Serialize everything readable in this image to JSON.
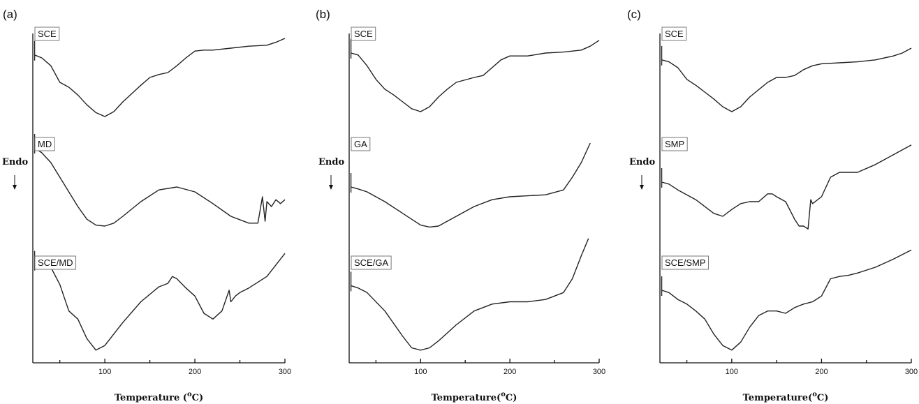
{
  "chart_data": [
    {
      "type": "line",
      "panel_label": "(a)",
      "xlabel": "Temperature (",
      "xlabel_sup": "o",
      "xlabel_end": "C)",
      "ylabel": "Endo",
      "xlim": [
        20,
        300
      ],
      "xticks": [
        100,
        200,
        300
      ],
      "series": [
        {
          "name": "SCE",
          "x": [
            22,
            30,
            40,
            50,
            60,
            70,
            80,
            90,
            100,
            110,
            120,
            140,
            150,
            160,
            170,
            180,
            190,
            200,
            210,
            220,
            240,
            260,
            280,
            290,
            300
          ],
          "y": [
            0.83,
            0.8,
            0.72,
            0.55,
            0.5,
            0.42,
            0.32,
            0.24,
            0.2,
            0.25,
            0.35,
            0.52,
            0.6,
            0.63,
            0.65,
            0.72,
            0.8,
            0.87,
            0.88,
            0.88,
            0.9,
            0.92,
            0.93,
            0.96,
            1.0
          ]
        },
        {
          "name": "MD",
          "x": [
            22,
            30,
            40,
            50,
            60,
            70,
            80,
            90,
            100,
            110,
            120,
            140,
            160,
            180,
            200,
            220,
            240,
            260,
            270,
            275,
            278,
            280,
            285,
            290,
            295,
            300
          ],
          "y": [
            0.95,
            0.9,
            0.8,
            0.65,
            0.5,
            0.35,
            0.22,
            0.16,
            0.15,
            0.18,
            0.25,
            0.4,
            0.52,
            0.55,
            0.5,
            0.38,
            0.25,
            0.18,
            0.18,
            0.45,
            0.2,
            0.4,
            0.35,
            0.42,
            0.38,
            0.42
          ]
        },
        {
          "name": "SCE/MD",
          "x": [
            22,
            30,
            40,
            50,
            60,
            70,
            80,
            90,
            100,
            110,
            120,
            140,
            160,
            170,
            175,
            180,
            190,
            200,
            210,
            220,
            230,
            238,
            240,
            245,
            250,
            260,
            280,
            300
          ],
          "y": [
            0.82,
            0.85,
            0.8,
            0.65,
            0.42,
            0.35,
            0.18,
            0.08,
            0.12,
            0.22,
            0.32,
            0.5,
            0.63,
            0.66,
            0.72,
            0.7,
            0.62,
            0.55,
            0.4,
            0.35,
            0.42,
            0.6,
            0.5,
            0.55,
            0.58,
            0.62,
            0.72,
            0.92
          ]
        }
      ]
    },
    {
      "type": "line",
      "panel_label": "(b)",
      "xlabel": "Temperature(",
      "xlabel_sup": "o",
      "xlabel_end": "C)",
      "ylabel": "Endo",
      "xlim": [
        20,
        300
      ],
      "xticks": [
        100,
        200,
        300
      ],
      "series": [
        {
          "name": "SCE",
          "x": [
            22,
            30,
            40,
            50,
            60,
            70,
            80,
            90,
            100,
            110,
            120,
            130,
            140,
            160,
            170,
            180,
            190,
            200,
            220,
            240,
            260,
            280,
            290,
            300
          ],
          "y": [
            0.85,
            0.83,
            0.72,
            0.58,
            0.48,
            0.42,
            0.35,
            0.28,
            0.25,
            0.3,
            0.4,
            0.48,
            0.55,
            0.6,
            0.62,
            0.7,
            0.78,
            0.82,
            0.82,
            0.85,
            0.86,
            0.88,
            0.92,
            0.98
          ]
        },
        {
          "name": "GA",
          "x": [
            22,
            30,
            40,
            60,
            80,
            100,
            110,
            120,
            140,
            160,
            180,
            200,
            220,
            240,
            260,
            270,
            280,
            290
          ],
          "y": [
            0.55,
            0.53,
            0.5,
            0.4,
            0.28,
            0.16,
            0.14,
            0.15,
            0.25,
            0.35,
            0.42,
            0.45,
            0.46,
            0.47,
            0.52,
            0.65,
            0.8,
            1.0
          ]
        },
        {
          "name": "SCE/GA",
          "x": [
            22,
            30,
            40,
            60,
            80,
            90,
            100,
            110,
            120,
            140,
            160,
            180,
            200,
            220,
            240,
            260,
            270,
            280,
            288
          ],
          "y": [
            0.64,
            0.62,
            0.58,
            0.42,
            0.2,
            0.1,
            0.08,
            0.1,
            0.16,
            0.3,
            0.42,
            0.48,
            0.5,
            0.5,
            0.52,
            0.58,
            0.7,
            0.9,
            1.05
          ]
        }
      ]
    },
    {
      "type": "line",
      "panel_label": "(c)",
      "xlabel": "Temperature(",
      "xlabel_sup": "o",
      "xlabel_end": "C)",
      "ylabel": "Endo",
      "xlim": [
        20,
        300
      ],
      "xticks": [
        100,
        200,
        300
      ],
      "series": [
        {
          "name": "SCE",
          "x": [
            22,
            30,
            40,
            50,
            60,
            70,
            80,
            90,
            100,
            110,
            120,
            140,
            150,
            160,
            170,
            180,
            190,
            200,
            220,
            240,
            260,
            280,
            290,
            300
          ],
          "y": [
            0.78,
            0.76,
            0.7,
            0.58,
            0.52,
            0.45,
            0.38,
            0.3,
            0.25,
            0.3,
            0.4,
            0.55,
            0.6,
            0.6,
            0.62,
            0.68,
            0.72,
            0.74,
            0.75,
            0.76,
            0.78,
            0.82,
            0.85,
            0.9
          ]
        },
        {
          "name": "SMP",
          "x": [
            22,
            30,
            40,
            60,
            80,
            90,
            100,
            110,
            120,
            130,
            140,
            145,
            150,
            160,
            170,
            175,
            180,
            185,
            188,
            190,
            200,
            210,
            220,
            240,
            260,
            280,
            300
          ],
          "y": [
            0.6,
            0.58,
            0.52,
            0.42,
            0.28,
            0.25,
            0.32,
            0.38,
            0.4,
            0.4,
            0.48,
            0.48,
            0.45,
            0.4,
            0.22,
            0.15,
            0.15,
            0.12,
            0.42,
            0.38,
            0.45,
            0.65,
            0.7,
            0.7,
            0.78,
            0.88,
            0.98
          ]
        },
        {
          "name": "SCE/SMP",
          "x": [
            22,
            30,
            40,
            50,
            60,
            70,
            80,
            90,
            100,
            110,
            120,
            130,
            140,
            150,
            160,
            170,
            180,
            190,
            200,
            210,
            220,
            230,
            240,
            260,
            280,
            300
          ],
          "y": [
            0.6,
            0.58,
            0.52,
            0.48,
            0.42,
            0.35,
            0.22,
            0.12,
            0.08,
            0.15,
            0.28,
            0.38,
            0.42,
            0.42,
            0.4,
            0.45,
            0.48,
            0.5,
            0.55,
            0.7,
            0.72,
            0.73,
            0.75,
            0.8,
            0.87,
            0.95
          ]
        }
      ]
    }
  ]
}
